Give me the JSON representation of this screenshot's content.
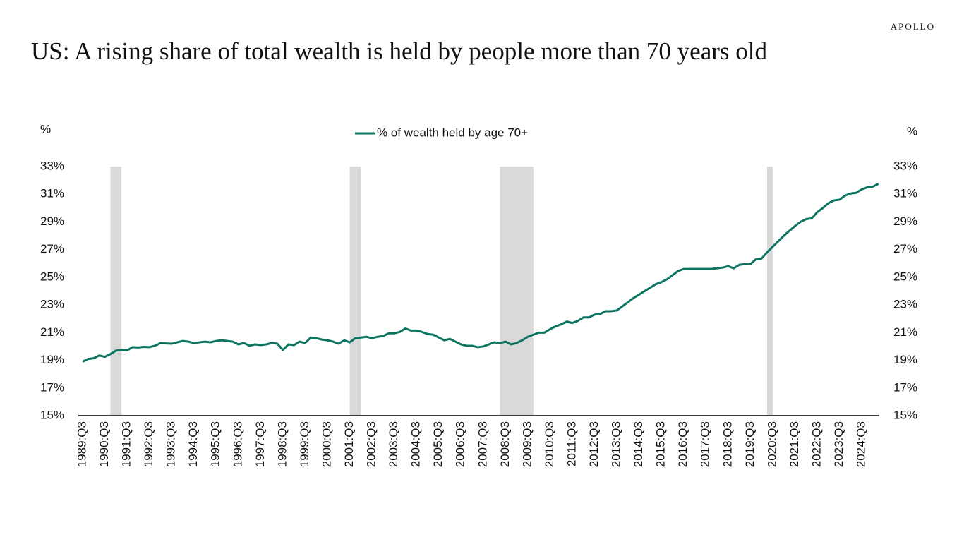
{
  "logo": "APOLLO",
  "chart_data": {
    "type": "line",
    "title": "US: A rising share of  total wealth is held by people more than 70 years old",
    "y_label": "%",
    "y2_label": "%",
    "categories": [
      "1989:Q3",
      null,
      null,
      null,
      "1990:Q3",
      null,
      null,
      null,
      "1991:Q3",
      null,
      null,
      null,
      "1992:Q3",
      null,
      null,
      null,
      "1993:Q3",
      null,
      null,
      null,
      "1994:Q3",
      null,
      null,
      null,
      "1995:Q3",
      null,
      null,
      null,
      "1996:Q3",
      null,
      null,
      null,
      "1997:Q3",
      null,
      null,
      null,
      "1998:Q3",
      null,
      null,
      null,
      "1999:Q3",
      null,
      null,
      null,
      "2000:Q3",
      null,
      null,
      null,
      "2001:Q3",
      null,
      null,
      null,
      "2002:Q3",
      null,
      null,
      null,
      "2003:Q3",
      null,
      null,
      null,
      "2004:Q3",
      null,
      null,
      null,
      "2005:Q3",
      null,
      null,
      null,
      "2006:Q3",
      null,
      null,
      null,
      "2007:Q3",
      null,
      null,
      null,
      "2008:Q3",
      null,
      null,
      null,
      "2009:Q3",
      null,
      null,
      null,
      "2010:Q3",
      null,
      null,
      null,
      "2011:Q3",
      null,
      null,
      null,
      "2012:Q3",
      null,
      null,
      null,
      "2013:Q3",
      null,
      null,
      null,
      "2014:Q3",
      null,
      null,
      null,
      "2015:Q3",
      null,
      null,
      null,
      "2016:Q3",
      null,
      null,
      null,
      "2017:Q3",
      null,
      null,
      null,
      "2018:Q3",
      null,
      null,
      null,
      "2019:Q3",
      null,
      null,
      null,
      "2020:Q3",
      null,
      null,
      null,
      "2021:Q3",
      null,
      null,
      null,
      "2022:Q3",
      null,
      null,
      null,
      "2023:Q3",
      null,
      null,
      null,
      "2024:Q3",
      null,
      null,
      null
    ],
    "series": [
      {
        "name": "% of wealth held by age 70+",
        "color": "#0b7561",
        "values": [
          18.9,
          19.1,
          19.15,
          19.35,
          19.25,
          19.45,
          19.7,
          19.75,
          19.72,
          19.95,
          19.93,
          19.97,
          19.95,
          20.05,
          20.25,
          20.22,
          20.2,
          20.3,
          20.4,
          20.35,
          20.25,
          20.3,
          20.35,
          20.3,
          20.4,
          20.45,
          20.4,
          20.35,
          20.15,
          20.25,
          20.05,
          20.15,
          20.1,
          20.15,
          20.25,
          20.2,
          19.75,
          20.15,
          20.1,
          20.35,
          20.25,
          20.65,
          20.6,
          20.5,
          20.45,
          20.35,
          20.2,
          20.45,
          20.3,
          20.6,
          20.65,
          20.7,
          20.6,
          20.7,
          20.75,
          20.95,
          20.95,
          21.05,
          21.3,
          21.15,
          21.15,
          21.05,
          20.9,
          20.85,
          20.65,
          20.45,
          20.55,
          20.35,
          20.15,
          20.05,
          20.05,
          19.95,
          20.0,
          20.15,
          20.3,
          20.25,
          20.35,
          20.15,
          20.25,
          20.45,
          20.7,
          20.85,
          21.0,
          21.0,
          21.25,
          21.45,
          21.6,
          21.8,
          21.7,
          21.85,
          22.1,
          22.1,
          22.3,
          22.35,
          22.55,
          22.55,
          22.6,
          22.9,
          23.2,
          23.5,
          23.75,
          24.0,
          24.25,
          24.5,
          24.65,
          24.85,
          25.15,
          25.45,
          25.6,
          25.6,
          25.6,
          25.6,
          25.6,
          25.6,
          25.65,
          25.7,
          25.8,
          25.65,
          25.9,
          25.95,
          25.95,
          26.3,
          26.35,
          26.8,
          27.2,
          27.6,
          28.0,
          28.35,
          28.7,
          29.0,
          29.2,
          29.25,
          29.7,
          30.0,
          30.35,
          30.55,
          30.6,
          30.9,
          31.05,
          31.1,
          31.35,
          31.5,
          31.55,
          31.75
        ]
      }
    ],
    "shading_color": "#d9d9d9",
    "shaded_periods": [
      [
        "1990:Q4",
        "1991:Q2"
      ],
      [
        "2001:Q3",
        "2002:Q1"
      ],
      [
        "2008:Q2",
        "2009:Q4"
      ],
      [
        "2020:Q2",
        "2020:Q3"
      ]
    ],
    "ylim": [
      15,
      33
    ],
    "yticks": [
      {
        "value": 15,
        "label": "15%"
      },
      {
        "value": 17,
        "label": "17%"
      },
      {
        "value": 19,
        "label": "19%"
      },
      {
        "value": 21,
        "label": "21%"
      },
      {
        "value": 23,
        "label": "23%"
      },
      {
        "value": 25,
        "label": "25%"
      },
      {
        "value": 27,
        "label": "27%"
      },
      {
        "value": 29,
        "label": "29%"
      },
      {
        "value": 31,
        "label": "31%"
      },
      {
        "value": 33,
        "label": "33%"
      }
    ],
    "y2lim": [
      15,
      33
    ],
    "y2ticks": [
      {
        "value": 15,
        "label": "15%"
      },
      {
        "value": 17,
        "label": "17%"
      },
      {
        "value": 19,
        "label": "19%"
      },
      {
        "value": 21,
        "label": "21%"
      },
      {
        "value": 23,
        "label": "23%"
      },
      {
        "value": 25,
        "label": "25%"
      },
      {
        "value": 27,
        "label": "27%"
      },
      {
        "value": 29,
        "label": "29%"
      },
      {
        "value": 31,
        "label": "31%"
      },
      {
        "value": 33,
        "label": "33%"
      }
    ],
    "grid": false,
    "legend": "top"
  }
}
